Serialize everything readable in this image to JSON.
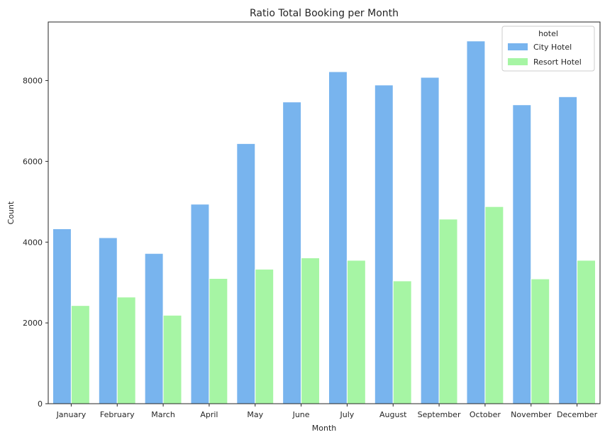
{
  "chart_data": {
    "type": "bar",
    "title": "Ratio Total Booking per Month",
    "xlabel": "Month",
    "ylabel": "Count",
    "categories": [
      "January",
      "February",
      "March",
      "April",
      "May",
      "June",
      "July",
      "August",
      "September",
      "October",
      "November",
      "December"
    ],
    "series": [
      {
        "name": "City Hotel",
        "color": "#78b4ee",
        "values": [
          4330,
          4110,
          3720,
          4940,
          6440,
          7470,
          8220,
          7890,
          8080,
          8980,
          7400,
          7600
        ]
      },
      {
        "name": "Resort Hotel",
        "color": "#a6f5a4",
        "values": [
          2430,
          2640,
          2190,
          3100,
          3330,
          3610,
          3550,
          3040,
          4570,
          4880,
          3090,
          3550
        ]
      }
    ],
    "ylim": [
      0,
      9450
    ],
    "yticks": [
      0,
      2000,
      4000,
      6000,
      8000
    ],
    "grid": false,
    "legend": {
      "title": "hotel",
      "placement": "top-right"
    }
  }
}
